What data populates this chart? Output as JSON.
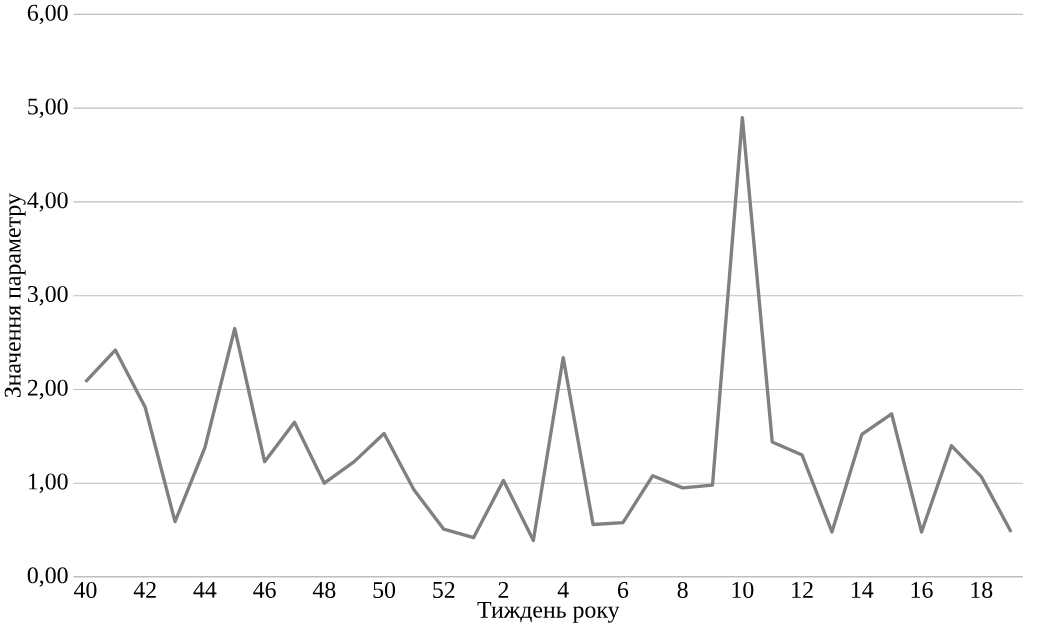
{
  "chart_data": {
    "type": "line",
    "xlabel": "Тиждень року",
    "ylabel": "Значення параметру",
    "categories": [
      "40",
      null,
      "42",
      null,
      "44",
      null,
      "46",
      null,
      "48",
      null,
      "50",
      null,
      "52",
      null,
      "2",
      null,
      "4",
      null,
      "6",
      null,
      "8",
      null,
      "10",
      null,
      "12",
      null,
      "14",
      null,
      "16",
      null,
      "18",
      null
    ],
    "values": [
      2.08,
      2.42,
      1.81,
      0.59,
      1.38,
      2.65,
      1.23,
      1.65,
      1.0,
      1.23,
      1.53,
      0.93,
      0.51,
      0.42,
      1.03,
      0.39,
      2.34,
      0.56,
      0.58,
      1.08,
      0.95,
      0.98,
      4.9,
      1.44,
      1.3,
      0.48,
      1.52,
      1.74,
      0.48,
      1.4,
      1.07,
      0.48
    ],
    "color": "#808080",
    "ylim": [
      0,
      6
    ],
    "yticks": [
      {
        "value": 0,
        "label": "0,00"
      },
      {
        "value": 1,
        "label": "1,00"
      },
      {
        "value": 2,
        "label": "2,00"
      },
      {
        "value": 3,
        "label": "3,00"
      },
      {
        "value": 4,
        "label": "4,00"
      },
      {
        "value": 5,
        "label": "5,00"
      },
      {
        "value": 6,
        "label": "6,00"
      }
    ],
    "grid": "y",
    "marker": "none",
    "line_style": "solid"
  }
}
